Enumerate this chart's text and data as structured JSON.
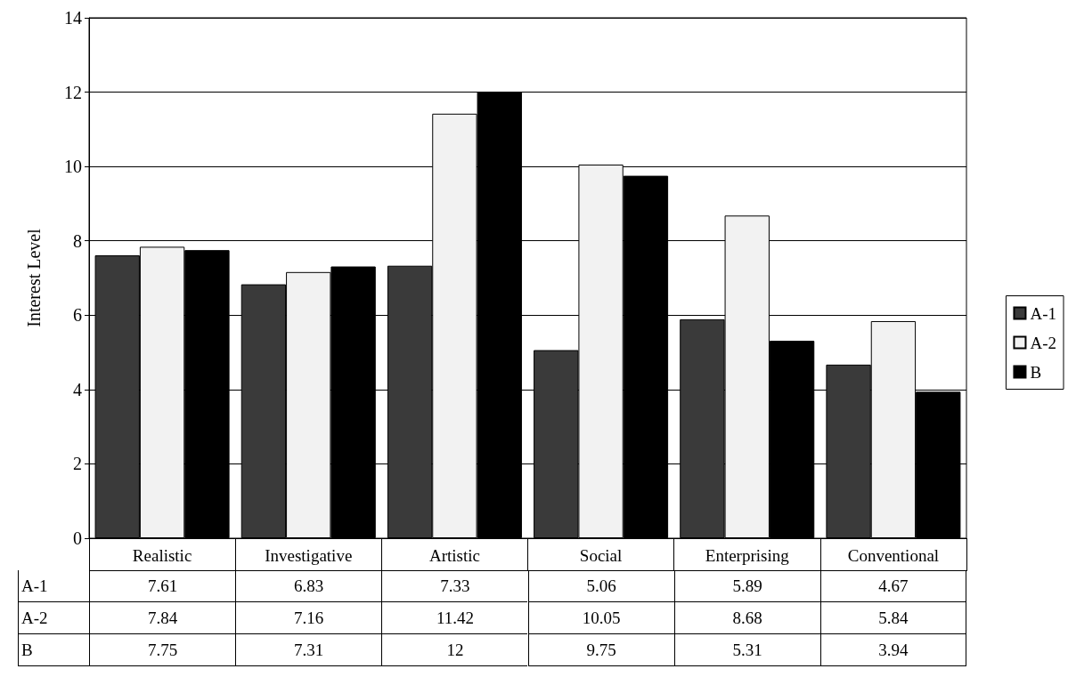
{
  "chart_data": {
    "type": "bar",
    "ylabel": "Interest Level",
    "categories": [
      "Realistic",
      "Investigative",
      "Artistic",
      "Social",
      "Enterprising",
      "Conventional"
    ],
    "series": [
      {
        "name": "A-1",
        "color": "#3a3a3a",
        "values": [
          7.61,
          6.83,
          7.33,
          5.06,
          5.89,
          4.67
        ]
      },
      {
        "name": "A-2",
        "color": "#f2f2f2",
        "values": [
          7.84,
          7.16,
          11.42,
          10.05,
          8.68,
          5.84
        ]
      },
      {
        "name": "B",
        "color": "#000000",
        "values": [
          7.75,
          7.31,
          12,
          9.75,
          5.31,
          3.94
        ]
      }
    ],
    "ylim": [
      0,
      14
    ],
    "yticks": [
      0,
      2,
      4,
      6,
      8,
      10,
      12,
      14
    ],
    "grid": "y",
    "legend": "right",
    "data_labels": true
  }
}
